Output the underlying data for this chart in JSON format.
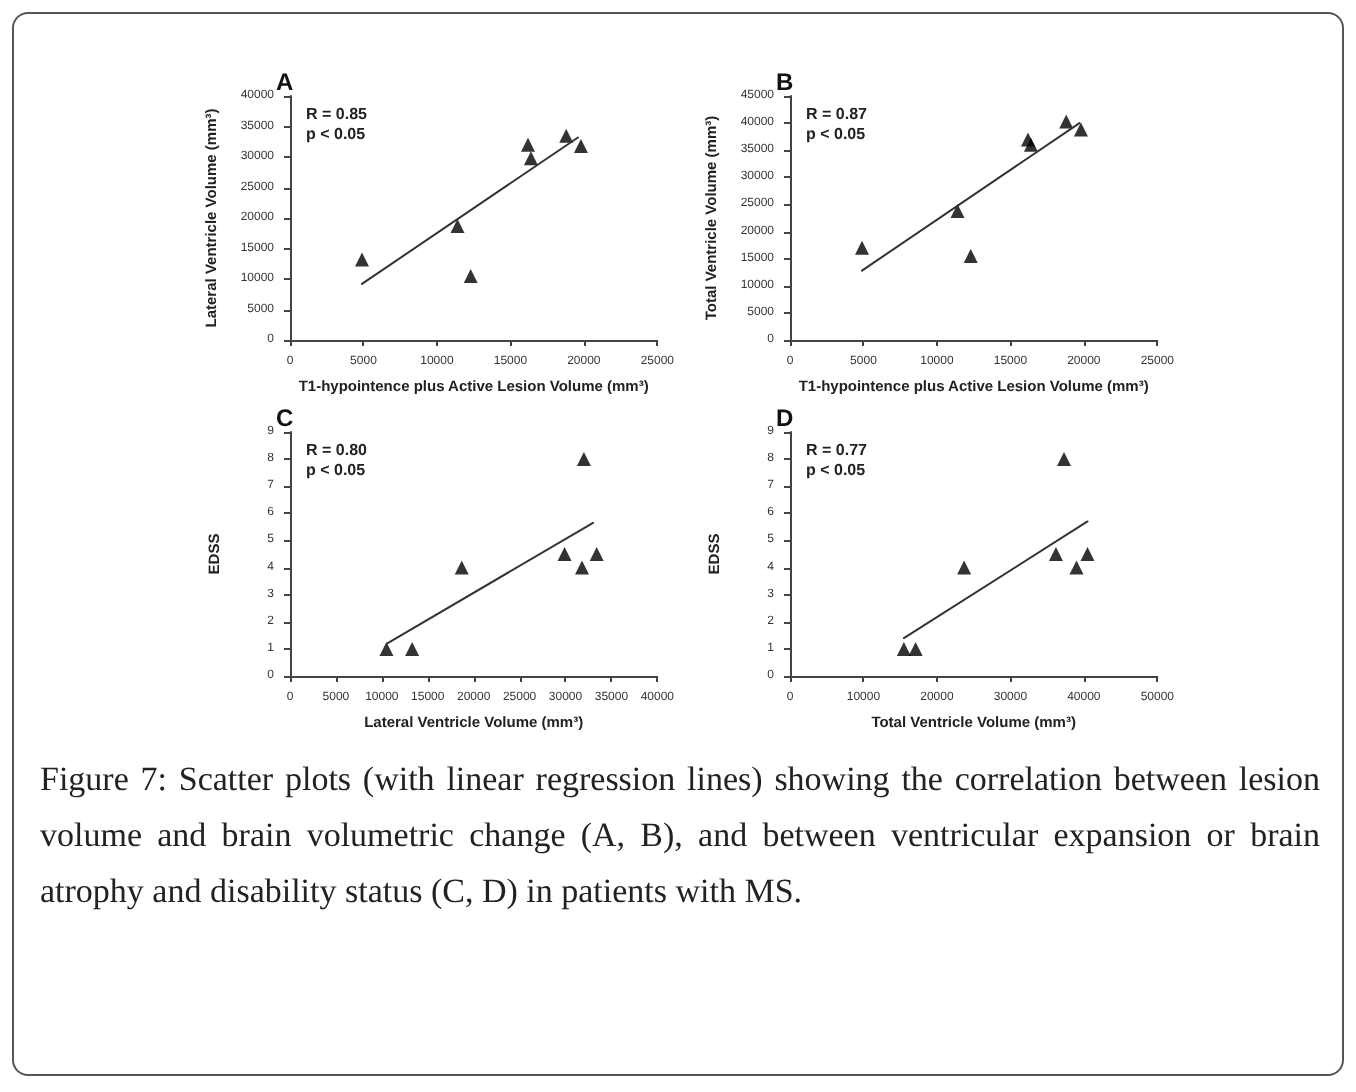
{
  "chart_data": [
    {
      "type": "scatter",
      "title": "A",
      "xlabel": "T1-hypointence plus Active Lesion Volume (mm³)",
      "ylabel": "Lateral Ventricle Volume (mm³)",
      "annotations": [
        "R = 0.85\np < 0.05"
      ],
      "marker": "triangle",
      "grid": false,
      "xlim": [
        0,
        25000
      ],
      "xticks": [
        0,
        5000,
        10000,
        15000,
        20000,
        25000
      ],
      "ylim": [
        0,
        40000
      ],
      "yticks": [
        0,
        5000,
        10000,
        15000,
        20000,
        25000,
        30000,
        35000,
        40000
      ],
      "series": [
        {
          "type": "scatter",
          "color": "#000000",
          "x": [
            4900,
            11400,
            12300,
            16200,
            16400,
            18800,
            19800
          ],
          "values": [
            13200,
            18700,
            10500,
            32000,
            29800,
            33500,
            31800
          ]
        },
        {
          "type": "line",
          "marker": "none",
          "color": "#333333",
          "x": [
            4900,
            19600
          ],
          "values": [
            9200,
            33200
          ]
        }
      ]
    },
    {
      "type": "scatter",
      "title": "B",
      "xlabel": "T1-hypointence plus Active Lesion Volume (mm³)",
      "ylabel": "Total Ventricle Volume (mm³)",
      "annotations": [
        "R = 0.87\np < 0.05"
      ],
      "marker": "triangle",
      "grid": false,
      "xlim": [
        0,
        25000
      ],
      "xticks": [
        0,
        5000,
        10000,
        15000,
        20000,
        25000
      ],
      "ylim": [
        0,
        45000
      ],
      "yticks": [
        0,
        5000,
        10000,
        15000,
        20000,
        25000,
        30000,
        35000,
        40000,
        45000
      ],
      "series": [
        {
          "type": "scatter",
          "color": "#000000",
          "x": [
            4900,
            11400,
            12300,
            16200,
            16400,
            18800,
            19800
          ],
          "values": [
            17000,
            23800,
            15500,
            37000,
            36000,
            40300,
            38800
          ]
        },
        {
          "type": "line",
          "marker": "none",
          "color": "#333333",
          "x": [
            4900,
            19700
          ],
          "values": [
            12800,
            40000
          ]
        }
      ]
    },
    {
      "type": "scatter",
      "title": "C",
      "xlabel": "Lateral Ventricle Volume (mm³)",
      "ylabel": "EDSS",
      "annotations": [
        "R = 0.80\np < 0.05"
      ],
      "marker": "triangle",
      "grid": false,
      "xlim": [
        0,
        40000
      ],
      "xticks": [
        0,
        5000,
        10000,
        15000,
        20000,
        25000,
        30000,
        35000,
        40000
      ],
      "ylim": [
        0,
        9
      ],
      "yticks": [
        0,
        1,
        2,
        3,
        4,
        5,
        6,
        7,
        8,
        9
      ],
      "series": [
        {
          "type": "scatter",
          "color": "#000000",
          "x": [
            10500,
            13300,
            18700,
            29900,
            31800,
            32000,
            33400
          ],
          "values": [
            1,
            1,
            4,
            4.5,
            4,
            8,
            4.5
          ]
        },
        {
          "type": "line",
          "marker": "none",
          "color": "#333333",
          "x": [
            10600,
            33000
          ],
          "values": [
            1.2,
            5.65
          ]
        }
      ]
    },
    {
      "type": "scatter",
      "title": "D",
      "xlabel": "Total Ventricle Volume (mm³)",
      "ylabel": "EDSS",
      "annotations": [
        "R = 0.77\np < 0.05",
        "Figure 7: Scatter plots (with linear regression lines) showing the correlation between lesion volume and brain volumetric change (A, B), and between ventricular expansion or brain atrophy and disability status (C, D) in patients with MS."
      ],
      "marker": "triangle",
      "grid": false,
      "xlim": [
        0,
        50000
      ],
      "xticks": [
        0,
        10000,
        20000,
        30000,
        40000,
        50000
      ],
      "ylim": [
        0,
        9
      ],
      "yticks": [
        0,
        1,
        2,
        3,
        4,
        5,
        6,
        7,
        8,
        9
      ],
      "series": [
        {
          "type": "scatter",
          "color": "#000000",
          "x": [
            15500,
            17100,
            23700,
            36200,
            39000,
            37300,
            40500
          ],
          "values": [
            1,
            1,
            4,
            4.5,
            4,
            8,
            4.5
          ]
        },
        {
          "type": "line",
          "marker": "none",
          "color": "#333333",
          "x": [
            15500,
            40500
          ],
          "values": [
            1.4,
            5.7
          ]
        }
      ]
    }
  ]
}
